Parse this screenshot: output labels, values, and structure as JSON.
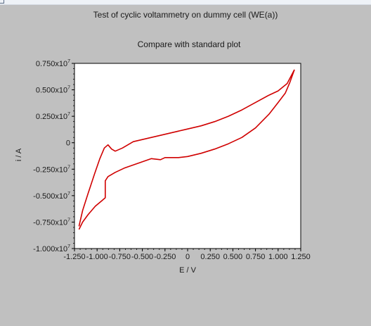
{
  "window": {
    "title": "Test of cyclic voltammetry on dummy cell (WE(a))"
  },
  "chart_data": {
    "type": "line",
    "title": "Test of cyclic voltammetry on dummy cell (WE(a))",
    "subtitle": "Compare with standard plot",
    "xlabel": "E / V",
    "ylabel": "i / A",
    "xlim": [
      -1.25,
      1.25
    ],
    "ylim": [
      -10000000.0,
      7500000.0
    ],
    "x_ticks": [
      -1.25,
      -1.0,
      -0.75,
      -0.5,
      -0.25,
      0,
      0.25,
      0.5,
      0.75,
      1.0,
      1.25
    ],
    "x_tick_labels": [
      "-1.250",
      "-1.000",
      "-0.750",
      "-0.500",
      "-0.250",
      "0",
      "0.250",
      "0.500",
      "0.750",
      "1.000",
      "1.250"
    ],
    "y_ticks": [
      7500000.0,
      5000000.0,
      2500000.0,
      0,
      -2500000.0,
      -5000000.0,
      -7500000.0,
      -10000000.0
    ],
    "y_tick_labels": [
      "0.750x10",
      "0.500x10",
      "0.250x10",
      "0",
      "-0.250x10",
      "-0.500x10",
      "-0.750x10",
      "-1.000x10"
    ],
    "y_tick_exponent": "7",
    "grid": false,
    "series_color": "#d00000",
    "series": [
      {
        "x": [
          1.18,
          1.1,
          1.0,
          0.9,
          0.75,
          0.6,
          0.45,
          0.3,
          0.15,
          0.0,
          -0.15,
          -0.3,
          -0.45,
          -0.6,
          -0.72,
          -0.8,
          -0.84,
          -0.88,
          -0.92,
          -0.97,
          -1.03,
          -1.1,
          -1.16,
          -1.2
        ],
        "y": [
          6900000.0,
          5600000.0,
          4900000.0,
          4500000.0,
          3800000.0,
          3100000.0,
          2500000.0,
          2000000.0,
          1600000.0,
          1300000.0,
          1000000.0,
          700000.0,
          400000.0,
          100000.0,
          -500000.0,
          -800000.0,
          -600000.0,
          -200000.0,
          -500000.0,
          -1500000.0,
          -3000000.0,
          -4800000.0,
          -6400000.0,
          -7900000.0
        ]
      },
      {
        "x": [
          -1.2,
          -1.16,
          -1.1,
          -1.02,
          -0.95,
          -0.91,
          -0.91,
          -0.88,
          -0.8,
          -0.7,
          -0.6,
          -0.5,
          -0.4,
          -0.3,
          -0.25,
          -0.2,
          -0.1,
          0.0,
          0.15,
          0.3,
          0.45,
          0.6,
          0.75,
          0.9,
          1.0,
          1.08,
          1.13,
          1.18
        ],
        "y": [
          -8200000.0,
          -7500000.0,
          -6800000.0,
          -6000000.0,
          -5500000.0,
          -5200000.0,
          -3600000.0,
          -3200000.0,
          -2800000.0,
          -2400000.0,
          -2100000.0,
          -1800000.0,
          -1500000.0,
          -1600000.0,
          -1400000.0,
          -1400000.0,
          -1400000.0,
          -1300000.0,
          -1000000.0,
          -600000.0,
          -100000.0,
          500000.0,
          1400000.0,
          2700000.0,
          3800000.0,
          4700000.0,
          5700000.0,
          6900000.0
        ]
      }
    ]
  }
}
